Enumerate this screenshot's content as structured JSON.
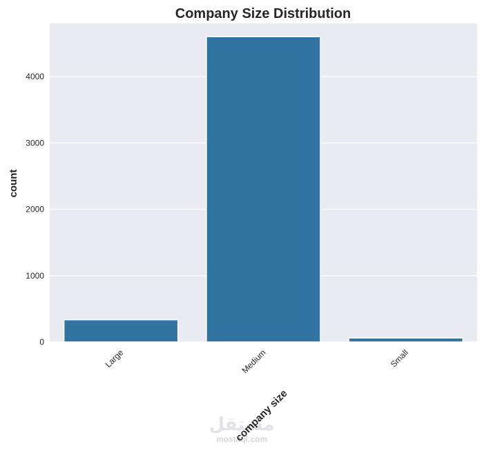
{
  "chart_data": {
    "type": "bar",
    "title": "Company Size Distribution",
    "xlabel": "company size",
    "ylabel": "count",
    "categories": [
      "Large",
      "Medium",
      "Small"
    ],
    "values": [
      335,
      4600,
      60
    ],
    "ylim": [
      0,
      4800
    ],
    "yticks": [
      0,
      1000,
      2000,
      3000,
      4000
    ],
    "ytick_labels": [
      "0",
      "1000",
      "2000",
      "3000",
      "4000"
    ],
    "bar_color": "#3274a1",
    "background_color": "#eaeaf2",
    "grid": true,
    "xtick_rotation": -45
  },
  "watermark": {
    "glyph": "مستقل",
    "text": "mostaql.com"
  }
}
